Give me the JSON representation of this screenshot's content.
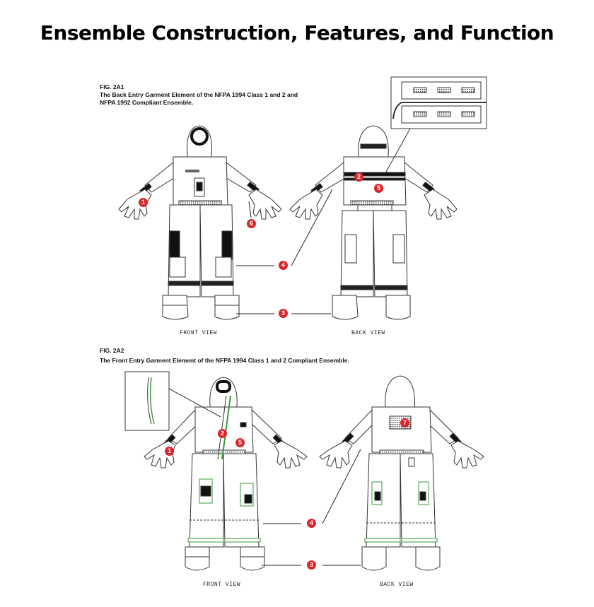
{
  "title": "Ensemble Construction, Features, and Function",
  "fig_2a1": {
    "label": "FIG. 2A1",
    "caption_line1": "The Back Entry Garment Element of the NFPA 1994 Class 1 and 2 and",
    "caption_line2": "NFPA 1992 Compliant Ensemble.",
    "front_view_label": "FRONT VIEW",
    "back_view_label": "BACK VIEW",
    "callouts": [
      "1",
      "2",
      "3",
      "4",
      "5",
      "6"
    ]
  },
  "fig_2a2": {
    "label": "FIG. 2A2",
    "caption": "The Front Entry Garment Element of the NFPA 1994 Class 1 and 2 Compliant Ensemble.",
    "front_view_label": "FRONT VIEW",
    "back_view_label": "BACK VIEW",
    "callouts": [
      "1",
      "2",
      "3",
      "4",
      "5",
      "7"
    ]
  },
  "colors": {
    "callout": "#d9262c",
    "line": "#222222",
    "trim_green": "#3a9a3a"
  }
}
